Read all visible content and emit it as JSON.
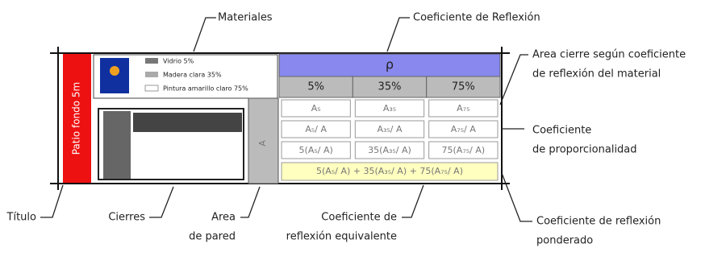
{
  "title_strip": "Patio fondo 5m",
  "legend": [
    "Vidrio 5%",
    "Madera clara 35%",
    "Pintura amarillo claro 75%"
  ],
  "wall_area": "A",
  "table": {
    "header": "ρ",
    "columns": [
      "5%",
      "35%",
      "75%"
    ],
    "rows": [
      [
        "A₅",
        "A₃₅",
        "A₇₅"
      ],
      [
        "A₅/ A",
        "A₃₅/ A",
        "A₇₅/ A"
      ],
      [
        "5(A₅/ A)",
        "35(A₃₅/ A)",
        "75(A₇₅/ A)"
      ]
    ],
    "total": "5(A₅/ A) + 35(A₃₅/ A) + 75(A₇₅/ A)"
  },
  "labels": [
    {
      "lines": [
        "Materiales"
      ]
    },
    {
      "lines": [
        "Coeficiente de Reflexión"
      ]
    },
    {
      "lines": [
        "Area cierre según coeficiente",
        "de reflexión del material"
      ]
    },
    {
      "lines": [
        "Coeficiente",
        "de proporcionalidad"
      ]
    },
    {
      "lines": [
        "Coeficiente de reflexión",
        "ponderado"
      ]
    },
    {
      "lines": [
        "Título"
      ]
    },
    {
      "lines": [
        "Cierres"
      ]
    },
    {
      "lines": [
        "Area",
        "de pared"
      ]
    },
    {
      "lines": [
        "Coeficiente de",
        "reflexión equivalente"
      ]
    }
  ]
}
